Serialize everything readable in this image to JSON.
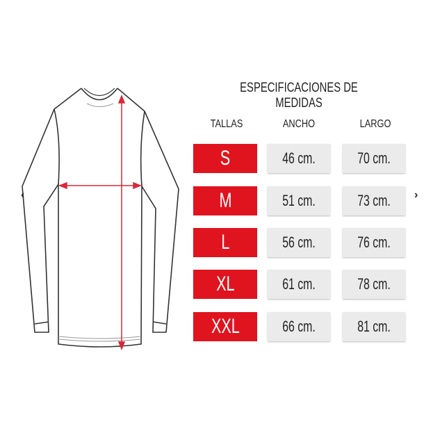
{
  "title": "ESPECIFICACIONES DE MEDIDAS",
  "headers": {
    "sizes": "TALLAS",
    "width": "ANCHO",
    "length": "LARGO"
  },
  "rows": [
    {
      "size": "S",
      "width": "46 cm.",
      "length": "70 cm."
    },
    {
      "size": "M",
      "width": "51 cm.",
      "length": "73 cm."
    },
    {
      "size": "L",
      "width": "56 cm.",
      "length": "76 cm."
    },
    {
      "size": "XL",
      "width": "61 cm.",
      "length": "78 cm."
    },
    {
      "size": "XXL",
      "width": "66 cm.",
      "length": "81 cm."
    }
  ],
  "nav": {
    "prev": "‹",
    "next": "›"
  },
  "colors": {
    "accent": "#e0141f",
    "cell": "#ebebeb",
    "measure_arrow": "#d8283a"
  }
}
